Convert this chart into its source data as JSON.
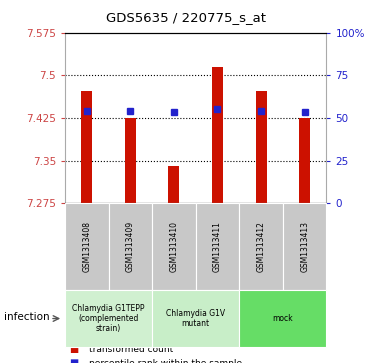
{
  "title": "GDS5635 / 220775_s_at",
  "samples": [
    "GSM1313408",
    "GSM1313409",
    "GSM1313410",
    "GSM1313411",
    "GSM1313412",
    "GSM1313413"
  ],
  "bar_values": [
    7.472,
    7.425,
    7.34,
    7.515,
    7.472,
    7.425
  ],
  "percentile_values": [
    7.438,
    7.438,
    7.435,
    7.44,
    7.438,
    7.436
  ],
  "ymin": 7.275,
  "ymax": 7.575,
  "yticks_left": [
    7.275,
    7.35,
    7.425,
    7.5,
    7.575
  ],
  "yticks_right": [
    0,
    25,
    50,
    75,
    100
  ],
  "bar_color": "#cc1100",
  "percentile_color": "#2222cc",
  "groups": [
    {
      "label": "Chlamydia G1TEPP\n(complemented\nstrain)",
      "indices": [
        0,
        1
      ],
      "color": "#d0f0d0"
    },
    {
      "label": "Chlamydia G1V\nmutant",
      "indices": [
        2,
        3
      ],
      "color": "#c8eec8"
    },
    {
      "label": "mock",
      "indices": [
        4,
        5
      ],
      "color": "#66dd66"
    }
  ],
  "infection_label": "infection",
  "legend_bar_label": "transformed count",
  "legend_pct_label": "percentile rank within the sample",
  "label_area_bg": "#c8c8c8",
  "bar_width": 0.25
}
